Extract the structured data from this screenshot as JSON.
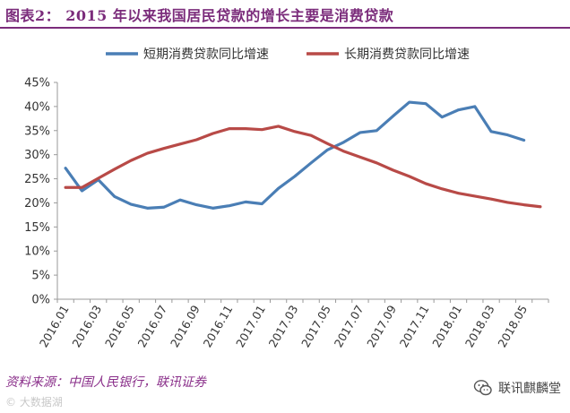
{
  "header": {
    "title": "图表2： 2015 年以来我国居民贷款的增长主要是消费贷款"
  },
  "footer": {
    "source": "资料来源：中国人民银行，联讯证券",
    "watermark": "© 大数据湖",
    "brand": "联讯麒麟堂"
  },
  "colors": {
    "short_series": "#4a7eb5",
    "long_series": "#b84a47",
    "title": "#7b2c7b"
  },
  "chart_data": {
    "type": "line",
    "title": "",
    "xlabel": "",
    "ylabel": "",
    "ylim": [
      0,
      45
    ],
    "yticks": [
      "0%",
      "5%",
      "10%",
      "15%",
      "20%",
      "25%",
      "30%",
      "35%",
      "40%",
      "45%"
    ],
    "legend_position": "top",
    "x": [
      "2016.01",
      "2016.02",
      "2016.03",
      "2016.04",
      "2016.05",
      "2016.06",
      "2016.07",
      "2016.08",
      "2016.09",
      "2016.10",
      "2016.11",
      "2016.12",
      "2017.01",
      "2017.02",
      "2017.03",
      "2017.04",
      "2017.05",
      "2017.06",
      "2017.07",
      "2017.08",
      "2017.09",
      "2017.10",
      "2017.11",
      "2017.12",
      "2018.01",
      "2018.02",
      "2018.03",
      "2018.04",
      "2018.05",
      "2018.06"
    ],
    "xtick_labels": [
      "2016.01",
      "2016.03",
      "2016.05",
      "2016.07",
      "2016.09",
      "2016.11",
      "2017.01",
      "2017.03",
      "2017.05",
      "2017.07",
      "2017.09",
      "2017.11",
      "2018.01",
      "2018.03",
      "2018.05"
    ],
    "series": [
      {
        "name": "短期消费贷款同比增速",
        "color": "#4a7eb5",
        "values": [
          27.2,
          22.5,
          24.8,
          21.3,
          19.7,
          18.9,
          19.1,
          20.6,
          19.6,
          18.9,
          19.4,
          20.2,
          19.8,
          23.0,
          25.5,
          28.3,
          31.0,
          32.6,
          34.6,
          35.0,
          38.0,
          40.9,
          40.6,
          37.8,
          39.3,
          40.0,
          34.8,
          34.1,
          33.0,
          null
        ]
      },
      {
        "name": "长期消费贷款同比增速",
        "color": "#b84a47",
        "values": [
          23.2,
          23.2,
          25.1,
          27.0,
          28.8,
          30.3,
          31.3,
          32.2,
          33.1,
          34.4,
          35.4,
          35.4,
          35.2,
          35.9,
          34.8,
          34.0,
          32.3,
          30.7,
          29.5,
          28.3,
          26.8,
          25.5,
          24.0,
          22.9,
          22.0,
          21.4,
          20.8,
          20.1,
          19.6,
          19.2
        ]
      }
    ]
  }
}
